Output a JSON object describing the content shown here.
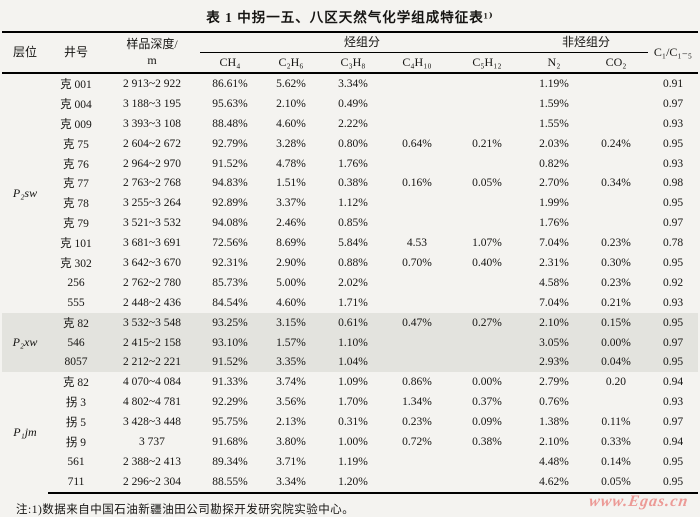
{
  "title": "表 1  中拐一五、八区天然气化学组成特征表¹⁾",
  "note": "注:1)数据来自中国石油新疆油田公司勘探开发研究院实验中心。",
  "watermark": "www.Egas.cn",
  "colors": {
    "page_bg": "#f4f3f0",
    "shaded_band": "#e3e3de",
    "watermark_red": "#ec9a96",
    "rule_black": "#000000"
  },
  "table": {
    "headers": {
      "stratum": "层位",
      "well": "井号",
      "depth_line1": "样品深度/",
      "depth_line2": "m",
      "hydrocarbon_group": "烃组分",
      "non_hydrocarbon_group": "非烃组分",
      "ratio": "C₁/C₁₋₅",
      "columns": [
        "CH₄",
        "C₂H₆",
        "C₃H₈",
        "C₄H₁₀",
        "C₅H₁₂",
        "N₂",
        "CO₂"
      ]
    },
    "sections": [
      {
        "stratum": "P₂sw",
        "shaded": false,
        "rows": [
          {
            "well": "克 001",
            "depth": "2 913~2 922",
            "c1": "86.61%",
            "c2": "5.62%",
            "c3": "3.34%",
            "c4": "",
            "c5": "",
            "n2": "1.19%",
            "co2": "",
            "ratio": "0.91"
          },
          {
            "well": "克 004",
            "depth": "3 188~3 195",
            "c1": "95.63%",
            "c2": "2.10%",
            "c3": "0.49%",
            "c4": "",
            "c5": "",
            "n2": "1.59%",
            "co2": "",
            "ratio": "0.97"
          },
          {
            "well": "克 009",
            "depth": "3 393~3 108",
            "c1": "88.48%",
            "c2": "4.60%",
            "c3": "2.22%",
            "c4": "",
            "c5": "",
            "n2": "1.55%",
            "co2": "",
            "ratio": "0.93"
          },
          {
            "well": "克 75",
            "depth": "2 604~2 672",
            "c1": "92.79%",
            "c2": "3.28%",
            "c3": "0.80%",
            "c4": "0.64%",
            "c5": "0.21%",
            "n2": "2.03%",
            "co2": "0.24%",
            "ratio": "0.95"
          },
          {
            "well": "克 76",
            "depth": "2 964~2 970",
            "c1": "91.52%",
            "c2": "4.78%",
            "c3": "1.76%",
            "c4": "",
            "c5": "",
            "n2": "0.82%",
            "co2": "",
            "ratio": "0.93"
          },
          {
            "well": "克 77",
            "depth": "2 763~2 768",
            "c1": "94.83%",
            "c2": "1.51%",
            "c3": "0.38%",
            "c4": "0.16%",
            "c5": "0.05%",
            "n2": "2.70%",
            "co2": "0.34%",
            "ratio": "0.98"
          },
          {
            "well": "克 78",
            "depth": "3 255~3 264",
            "c1": "92.89%",
            "c2": "3.37%",
            "c3": "1.12%",
            "c4": "",
            "c5": "",
            "n2": "1.99%",
            "co2": "",
            "ratio": "0.95"
          },
          {
            "well": "克 79",
            "depth": "3 521~3 532",
            "c1": "94.08%",
            "c2": "2.46%",
            "c3": "0.85%",
            "c4": "",
            "c5": "",
            "n2": "1.76%",
            "co2": "",
            "ratio": "0.97"
          },
          {
            "well": "克 101",
            "depth": "3 681~3 691",
            "c1": "72.56%",
            "c2": "8.69%",
            "c3": "5.84%",
            "c4": "4.53",
            "c5": "1.07%",
            "n2": "7.04%",
            "co2": "0.23%",
            "ratio": "0.78"
          },
          {
            "well": "克 302",
            "depth": "3 642~3 670",
            "c1": "92.31%",
            "c2": "2.90%",
            "c3": "0.88%",
            "c4": "0.70%",
            "c5": "0.40%",
            "n2": "2.31%",
            "co2": "0.30%",
            "ratio": "0.95"
          },
          {
            "well": "256",
            "depth": "2 762~2 780",
            "c1": "85.73%",
            "c2": "5.00%",
            "c3": "2.02%",
            "c4": "",
            "c5": "",
            "n2": "4.58%",
            "co2": "0.23%",
            "ratio": "0.92"
          },
          {
            "well": "555",
            "depth": "2 448~2 436",
            "c1": "84.54%",
            "c2": "4.60%",
            "c3": "1.71%",
            "c4": "",
            "c5": "",
            "n2": "7.04%",
            "co2": "0.21%",
            "ratio": "0.93"
          }
        ]
      },
      {
        "stratum": "P₂xw",
        "shaded": true,
        "rows": [
          {
            "well": "克 82",
            "depth": "3 532~3 548",
            "c1": "93.25%",
            "c2": "3.15%",
            "c3": "0.61%",
            "c4": "0.47%",
            "c5": "0.27%",
            "n2": "2.10%",
            "co2": "0.15%",
            "ratio": "0.95"
          },
          {
            "well": "546",
            "depth": "2 415~2 158",
            "c1": "93.10%",
            "c2": "1.57%",
            "c3": "1.10%",
            "c4": "",
            "c5": "",
            "n2": "3.05%",
            "co2": "0.00%",
            "ratio": "0.97"
          },
          {
            "well": "8057",
            "depth": "2 212~2 221",
            "c1": "91.52%",
            "c2": "3.35%",
            "c3": "1.04%",
            "c4": "",
            "c5": "",
            "n2": "2.93%",
            "co2": "0.04%",
            "ratio": "0.95"
          }
        ]
      },
      {
        "stratum": "P₁jm",
        "shaded": false,
        "rows": [
          {
            "well": "克 82",
            "depth": "4 070~4 084",
            "c1": "91.33%",
            "c2": "3.74%",
            "c3": "1.09%",
            "c4": "0.86%",
            "c5": "0.00%",
            "n2": "2.79%",
            "co2": "0.20",
            "ratio": "0.94"
          },
          {
            "well": "拐 3",
            "depth": "4 802~4 781",
            "c1": "92.29%",
            "c2": "3.56%",
            "c3": "1.70%",
            "c4": "1.34%",
            "c5": "0.37%",
            "n2": "0.76%",
            "co2": "",
            "ratio": "0.93"
          },
          {
            "well": "拐 5",
            "depth": "3 428~3 448",
            "c1": "95.75%",
            "c2": "2.13%",
            "c3": "0.31%",
            "c4": "0.23%",
            "c5": "0.09%",
            "n2": "1.38%",
            "co2": "0.11%",
            "ratio": "0.97"
          },
          {
            "well": "拐 9",
            "depth": "3 737",
            "c1": "91.68%",
            "c2": "3.80%",
            "c3": "1.00%",
            "c4": "0.72%",
            "c5": "0.38%",
            "n2": "2.10%",
            "co2": "0.33%",
            "ratio": "0.94"
          },
          {
            "well": "561",
            "depth": "2 388~2 413",
            "c1": "89.34%",
            "c2": "3.71%",
            "c3": "1.19%",
            "c4": "",
            "c5": "",
            "n2": "4.48%",
            "co2": "0.14%",
            "ratio": "0.95"
          },
          {
            "well": "711",
            "depth": "2 296~2 304",
            "c1": "88.55%",
            "c2": "3.34%",
            "c3": "1.20%",
            "c4": "",
            "c5": "",
            "n2": "4.62%",
            "co2": "0.05%",
            "ratio": "0.95"
          }
        ]
      }
    ]
  }
}
